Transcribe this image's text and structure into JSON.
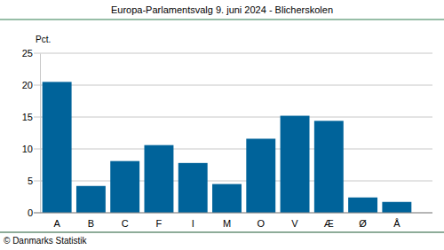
{
  "chart_data": {
    "type": "bar",
    "title": "Europa-Parlamentsvalg 9. juni 2024 - Blicherskolen",
    "ylabel": "Pct.",
    "source": "© Danmarks Statistik",
    "categories": [
      "A",
      "B",
      "C",
      "F",
      "I",
      "M",
      "O",
      "V",
      "Æ",
      "Ø",
      "Å"
    ],
    "values": [
      20.5,
      4.2,
      8.1,
      10.6,
      7.8,
      4.5,
      11.6,
      15.2,
      14.4,
      2.4,
      1.7
    ],
    "color": "#00639a",
    "ylim": [
      0,
      25
    ],
    "yticks": [
      0,
      5,
      10,
      15,
      20,
      25
    ],
    "grid": true
  }
}
